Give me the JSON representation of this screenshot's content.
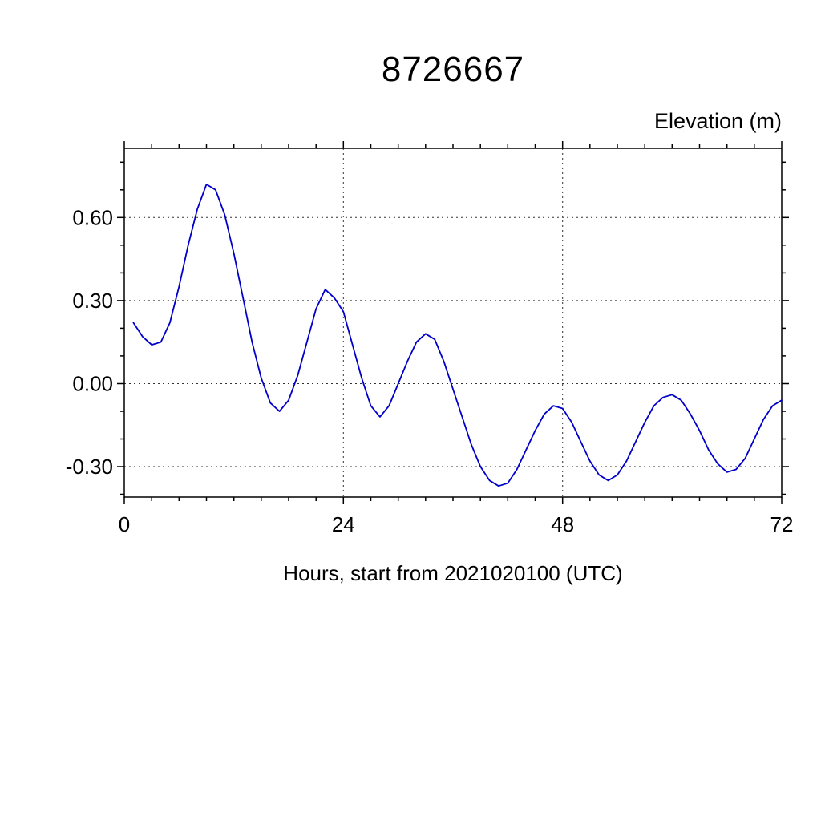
{
  "chart_data": {
    "type": "line",
    "title": "8726667",
    "xlabel": "Hours, start from 2021020100 (UTC)",
    "ylabel": "Elevation (m)",
    "xlim": [
      0,
      72
    ],
    "ylim": [
      -0.41,
      0.85
    ],
    "x_major_ticks": [
      0,
      24,
      48,
      72
    ],
    "x_tick_labels": [
      "0",
      "24",
      "48",
      "72"
    ],
    "x_minor_step": 3,
    "y_major_ticks": [
      -0.3,
      0,
      0.3,
      0.6
    ],
    "y_tick_labels": [
      "-0.30",
      "0.00",
      "0.30",
      "0.60"
    ],
    "y_minor_step": 0.1,
    "x_grid": [
      24,
      48
    ],
    "grid_style": "dashed",
    "legend": "none",
    "line_color": "#0000c8",
    "background": "#ffffff",
    "series": [
      {
        "name": "elevation",
        "x": [
          1,
          2,
          3,
          4,
          5,
          6,
          7,
          8,
          9,
          10,
          11,
          12,
          13,
          14,
          15,
          16,
          17,
          18,
          19,
          20,
          21,
          22,
          23,
          24,
          25,
          26,
          27,
          28,
          29,
          30,
          31,
          32,
          33,
          34,
          35,
          36,
          37,
          38,
          39,
          40,
          41,
          42,
          43,
          44,
          45,
          46,
          47,
          48,
          49,
          50,
          51,
          52,
          53,
          54,
          55,
          56,
          57,
          58,
          59,
          60,
          61,
          62,
          63,
          64,
          65,
          66,
          67,
          68,
          69,
          70,
          71,
          72
        ],
        "y": [
          0.22,
          0.17,
          0.14,
          0.15,
          0.22,
          0.35,
          0.5,
          0.63,
          0.72,
          0.7,
          0.61,
          0.47,
          0.31,
          0.15,
          0.02,
          -0.07,
          -0.1,
          -0.06,
          0.03,
          0.15,
          0.27,
          0.34,
          0.31,
          0.26,
          0.14,
          0.02,
          -0.08,
          -0.12,
          -0.08,
          0.0,
          0.08,
          0.15,
          0.18,
          0.16,
          0.08,
          -0.02,
          -0.12,
          -0.22,
          -0.3,
          -0.35,
          -0.37,
          -0.36,
          -0.31,
          -0.24,
          -0.17,
          -0.11,
          -0.08,
          -0.09,
          -0.14,
          -0.21,
          -0.28,
          -0.33,
          -0.35,
          -0.33,
          -0.28,
          -0.21,
          -0.14,
          -0.08,
          -0.05,
          -0.04,
          -0.06,
          -0.11,
          -0.17,
          -0.24,
          -0.29,
          -0.32,
          -0.31,
          -0.27,
          -0.2,
          -0.13,
          -0.08,
          -0.06
        ]
      }
    ]
  }
}
